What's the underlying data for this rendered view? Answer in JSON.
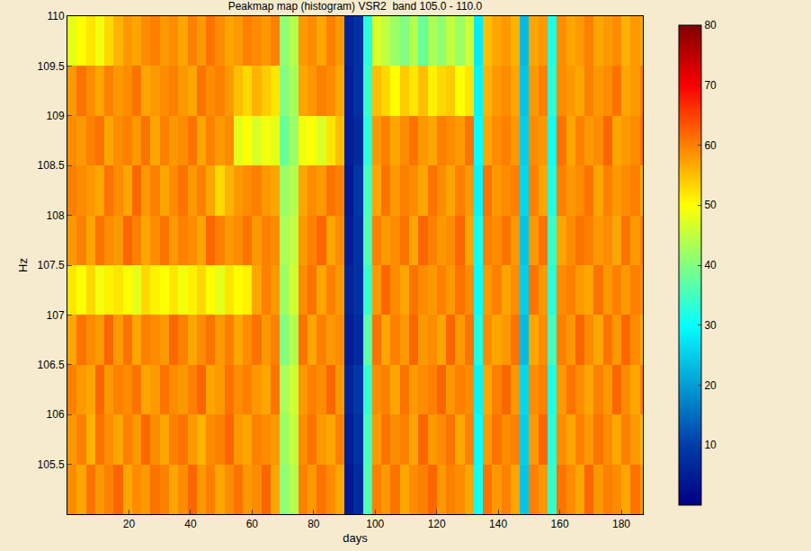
{
  "chart_data": {
    "type": "heatmap",
    "title": "Peakmap map (histogram) VSR2  band 105.0 - 110.0",
    "x_label": "days",
    "y_label": "Hz",
    "color": "Jet",
    "xlim": [
      0,
      187
    ],
    "ylim": [
      105,
      110
    ],
    "xticks": [
      20,
      40,
      60,
      80,
      100,
      120,
      140,
      160,
      180
    ],
    "yticks": [
      105.5,
      106,
      106.5,
      107,
      107.5,
      108,
      108.5,
      109,
      109.5,
      110
    ],
    "colorbar": {
      "range": [
        0,
        80
      ],
      "ticks": [
        10,
        20,
        30,
        40,
        50,
        60,
        70,
        80
      ]
    },
    "x": [
      1.5,
      4.5,
      7.5,
      10.5,
      13.5,
      16.5,
      19.5,
      22.5,
      25.5,
      28.5,
      31.5,
      34.5,
      37.5,
      40.5,
      43.5,
      46.5,
      49.5,
      52.5,
      55.5,
      58.5,
      61.5,
      64.5,
      67.5,
      70.5,
      73.5,
      76.5,
      79.5,
      82.5,
      85.5,
      88.5,
      91.5,
      94.5,
      97.5,
      100.5,
      103.5,
      106.5,
      109.5,
      112.5,
      115.5,
      118.5,
      121.5,
      124.5,
      127.5,
      130.5,
      133.5,
      136.5,
      139.5,
      142.5,
      145.5,
      148.5,
      151.5,
      154.5,
      157.5,
      160.5,
      163.5,
      166.5,
      169.5,
      172.5,
      175.5,
      178.5,
      181.5,
      184.5,
      187.5
    ],
    "y": [
      105.25,
      105.75,
      106.25,
      106.75,
      107.25,
      107.75,
      108.25,
      108.75,
      109.25,
      109.75
    ],
    "cells": [
      [
        59,
        57,
        61,
        58,
        60,
        62,
        57,
        59,
        58,
        61,
        60,
        57,
        59,
        62,
        58,
        60,
        57,
        59,
        61,
        58,
        59,
        62,
        57,
        41,
        44,
        60,
        58,
        61,
        59,
        57,
        4,
        7,
        36,
        60,
        58,
        61,
        57,
        59,
        60,
        62,
        58,
        60,
        59,
        57,
        31,
        61,
        58,
        60,
        57,
        24,
        60,
        58,
        34,
        61,
        59,
        57,
        62,
        58,
        60,
        59,
        57,
        61,
        58
      ],
      [
        58,
        60,
        56,
        61,
        59,
        57,
        60,
        58,
        62,
        59,
        57,
        60,
        61,
        58,
        56,
        59,
        60,
        62,
        58,
        57,
        60,
        59,
        58,
        42,
        45,
        59,
        61,
        58,
        57,
        60,
        5,
        8,
        35,
        58,
        61,
        59,
        60,
        57,
        62,
        58,
        59,
        61,
        57,
        60,
        30,
        58,
        61,
        59,
        60,
        25,
        58,
        62,
        33,
        59,
        57,
        60,
        58,
        61,
        59,
        57,
        60,
        58,
        56
      ],
      [
        60,
        58,
        57,
        62,
        58,
        60,
        59,
        61,
        57,
        58,
        61,
        59,
        58,
        60,
        62,
        57,
        58,
        61,
        59,
        60,
        58,
        57,
        61,
        43,
        46,
        58,
        60,
        59,
        62,
        58,
        6,
        9,
        34,
        59,
        60,
        57,
        61,
        58,
        59,
        60,
        62,
        58,
        60,
        59,
        29,
        57,
        60,
        62,
        58,
        26,
        59,
        60,
        32,
        58,
        61,
        59,
        57,
        60,
        58,
        62,
        59,
        57,
        60
      ],
      [
        57,
        61,
        59,
        58,
        62,
        58,
        61,
        57,
        60,
        59,
        58,
        62,
        60,
        57,
        59,
        61,
        58,
        60,
        57,
        59,
        61,
        58,
        60,
        40,
        44,
        61,
        57,
        60,
        58,
        59,
        5,
        7,
        37,
        61,
        57,
        60,
        58,
        62,
        58,
        59,
        57,
        62,
        58,
        61,
        32,
        59,
        57,
        58,
        61,
        23,
        57,
        59,
        35,
        60,
        58,
        62,
        59,
        57,
        61,
        58,
        62,
        59,
        57
      ],
      [
        52,
        50,
        53,
        49,
        51,
        52,
        50,
        48,
        53,
        51,
        50,
        52,
        49,
        51,
        53,
        50,
        48,
        52,
        50,
        51,
        57,
        60,
        58,
        42,
        46,
        59,
        61,
        57,
        60,
        58,
        6,
        8,
        34,
        58,
        62,
        59,
        57,
        61,
        59,
        58,
        60,
        58,
        61,
        59,
        30,
        58,
        60,
        57,
        59,
        25,
        61,
        58,
        33,
        59,
        60,
        58,
        57,
        61,
        58,
        60,
        58,
        60,
        59
      ],
      [
        58,
        60,
        57,
        61,
        59,
        58,
        62,
        60,
        57,
        59,
        61,
        58,
        60,
        59,
        57,
        62,
        60,
        58,
        59,
        61,
        58,
        60,
        59,
        43,
        45,
        58,
        60,
        62,
        57,
        59,
        5,
        8,
        36,
        60,
        58,
        59,
        61,
        57,
        62,
        60,
        58,
        59,
        62,
        57,
        31,
        60,
        59,
        61,
        58,
        24,
        58,
        61,
        34,
        57,
        59,
        61,
        60,
        58,
        59,
        57,
        61,
        58,
        60
      ],
      [
        60,
        59,
        58,
        57,
        61,
        59,
        57,
        62,
        58,
        60,
        57,
        59,
        61,
        58,
        60,
        57,
        53,
        56,
        58,
        59,
        60,
        58,
        57,
        42,
        44,
        57,
        59,
        58,
        61,
        60,
        4,
        9,
        35,
        57,
        61,
        58,
        60,
        59,
        57,
        61,
        59,
        57,
        60,
        58,
        29,
        61,
        58,
        59,
        60,
        26,
        60,
        57,
        32,
        60,
        58,
        59,
        61,
        57,
        60,
        58,
        59,
        60,
        57
      ],
      [
        59,
        58,
        60,
        61,
        57,
        59,
        60,
        58,
        61,
        57,
        60,
        58,
        59,
        61,
        57,
        60,
        58,
        59,
        48,
        50,
        47,
        49,
        48,
        38,
        42,
        49,
        50,
        47,
        52,
        55,
        5,
        7,
        33,
        58,
        60,
        57,
        59,
        61,
        58,
        57,
        60,
        59,
        58,
        61,
        30,
        57,
        59,
        60,
        58,
        25,
        59,
        58,
        31,
        61,
        57,
        60,
        58,
        59,
        62,
        57,
        58,
        59,
        61
      ],
      [
        58,
        61,
        59,
        57,
        60,
        58,
        59,
        61,
        57,
        58,
        59,
        60,
        58,
        57,
        61,
        59,
        60,
        58,
        55,
        53,
        56,
        54,
        52,
        40,
        43,
        57,
        58,
        60,
        59,
        57,
        5,
        8,
        34,
        55,
        53,
        50,
        54,
        52,
        55,
        51,
        53,
        54,
        50,
        52,
        29,
        56,
        58,
        59,
        57,
        24,
        58,
        60,
        33,
        59,
        58,
        57,
        60,
        58,
        59,
        61,
        57,
        58,
        60
      ],
      [
        48,
        50,
        52,
        49,
        53,
        56,
        58,
        57,
        59,
        60,
        58,
        59,
        57,
        60,
        58,
        61,
        59,
        57,
        58,
        60,
        59,
        58,
        60,
        41,
        44,
        58,
        59,
        57,
        60,
        58,
        6,
        8,
        33,
        47,
        45,
        42,
        40,
        44,
        38,
        43,
        41,
        45,
        42,
        46,
        28,
        55,
        57,
        58,
        56,
        23,
        57,
        58,
        32,
        59,
        57,
        58,
        60,
        57,
        58,
        59,
        56,
        58,
        57
      ]
    ]
  }
}
